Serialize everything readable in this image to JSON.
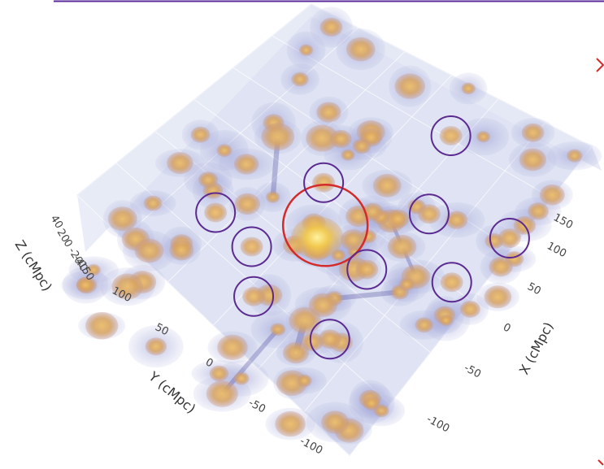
{
  "chart_data": {
    "type": "scatter",
    "subtype": "3d-isosurface",
    "title": "",
    "x_axis": {
      "label": "X (cMpc)",
      "ticks": [
        "150",
        "100",
        "50",
        "0",
        "-50",
        "-100"
      ],
      "range": [
        -150,
        180
      ]
    },
    "y_axis": {
      "label": "Y (cMpc)",
      "ticks": [
        "100",
        "50",
        "0",
        "-50",
        "-100"
      ],
      "range": [
        -150,
        150
      ]
    },
    "z_axis": {
      "label": "Z (cMpc)",
      "ticks": [
        "40",
        "20",
        "0",
        "-20",
        "-40",
        "150"
      ]
    },
    "grid": true,
    "colors": {
      "halo": "#d7a760",
      "halo_core": "#e9b25c",
      "envelope": "#9aa0d8",
      "filament": "#4d4a9c",
      "purple_circle": "#5b2a91",
      "red_circle": "#d42a2a",
      "background": "#dde1f1"
    },
    "highlighted_regions": [
      {
        "name": "central-bright-region",
        "color": "red",
        "x": 15,
        "y": 10
      },
      {
        "name": "region-upper-center",
        "color": "purple",
        "x": 130,
        "y": -5
      },
      {
        "name": "region-upper-left",
        "color": "purple",
        "x": 45,
        "y": 40
      },
      {
        "name": "region-right-upper",
        "color": "purple",
        "x": 65,
        "y": -45
      },
      {
        "name": "region-left",
        "color": "purple",
        "x": -20,
        "y": 85
      },
      {
        "name": "region-left-lower",
        "color": "purple",
        "x": -30,
        "y": 40
      },
      {
        "name": "region-center-lower",
        "color": "purple",
        "x": 0,
        "y": -45
      },
      {
        "name": "region-right",
        "color": "purple",
        "x": 80,
        "y": -110
      },
      {
        "name": "region-right-lower",
        "color": "purple",
        "x": 25,
        "y": -105
      },
      {
        "name": "region-bottom",
        "color": "purple",
        "x": -65,
        "y": 5
      },
      {
        "name": "region-bottom-right",
        "color": "purple",
        "x": -65,
        "y": -70
      }
    ]
  }
}
